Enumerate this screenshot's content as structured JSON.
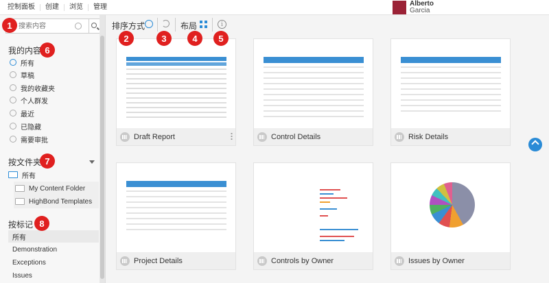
{
  "topnav": {
    "items": [
      "控制面板",
      "创建",
      "浏览",
      "管理"
    ]
  },
  "user": {
    "first_name": "Alberto",
    "last_name": "Garcia"
  },
  "search": {
    "placeholder": "搜索内容"
  },
  "sidebar": {
    "my_content": {
      "title": "我的内容",
      "items": [
        "所有",
        "草稿",
        "我的收藏夹",
        "个人群发",
        "最近",
        "已隐藏",
        "需要审批"
      ]
    },
    "by_folder": {
      "title": "按文件夹",
      "items": [
        "所有",
        "My Content Folder",
        "HighBond Templates"
      ]
    },
    "by_tag": {
      "title": "按标记",
      "items": [
        "所有",
        "Demonstration",
        "Exceptions",
        "Issues"
      ]
    }
  },
  "toolbar": {
    "sort_label": "排序方式",
    "layout_label": "布局",
    "info_glyph": "i"
  },
  "markers": [
    "1",
    "2",
    "3",
    "4",
    "5",
    "6",
    "7",
    "8"
  ],
  "reports": [
    {
      "title": "Draft Report"
    },
    {
      "title": "Control Details"
    },
    {
      "title": "Risk Details"
    },
    {
      "title": "Project Details"
    },
    {
      "title": "Controls by Owner"
    },
    {
      "title": "Issues by Owner"
    }
  ],
  "colors": {
    "accent": "#2a8bd6",
    "marker": "#e0201f",
    "avatar": "#9b2236"
  }
}
